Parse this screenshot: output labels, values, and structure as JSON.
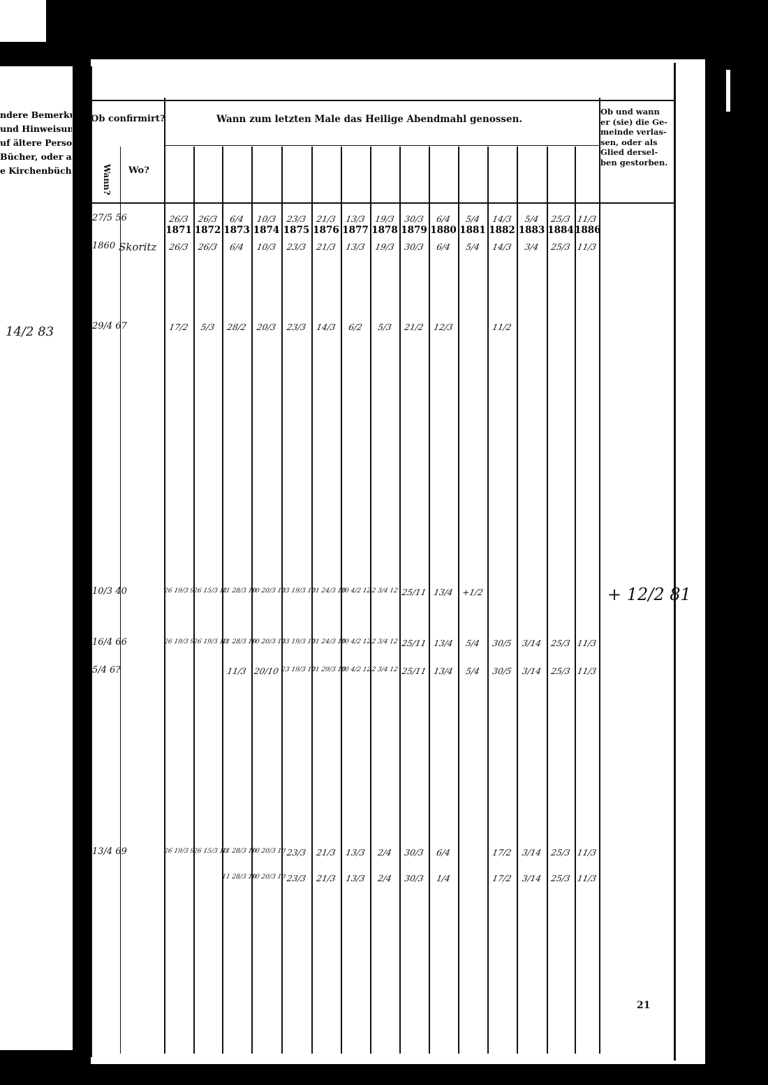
{
  "left_page": {
    "lines": [
      "ndere Bemerkun-",
      "und Hinweisun-",
      "uf ältere Perso-",
      "Bücher, oder auf",
      "e Kirchenbücher."
    ],
    "note": "14/2 83"
  },
  "header": {
    "confirmed": "Ob confirmirt?",
    "when": "Wann?",
    "where": "Wo?",
    "communion": "Wann zum letzten Male das Heilige Abendmahl genossen.",
    "left_lines": [
      "Ob und wann",
      "er (sie) die Ge-",
      "meinde verlas-",
      "sen, oder als",
      "Glied dersel-",
      "ben gestorben."
    ],
    "years": [
      "1871",
      "1872",
      "1873",
      "1874",
      "1875",
      "1876",
      "1877",
      "1878",
      "1879",
      "1880",
      "1881",
      "1882",
      "1883",
      "1884",
      "1886"
    ]
  },
  "rows": [
    {
      "when": "27/5 56",
      "where": "",
      "left": "",
      "entries": [
        "26/3",
        "26/3",
        "6/4",
        "10/3",
        "23/3",
        "21/3",
        "13/3",
        "19/3",
        "30/3",
        "6/4",
        "5/4",
        "14/3",
        "5/4",
        "25/3",
        "11/3"
      ]
    },
    {
      "when": "1860",
      "where": "Skoritz",
      "left": "",
      "entries": [
        "26/3",
        "26/3",
        "6/4",
        "10/3",
        "23/3",
        "21/3",
        "13/3",
        "19/3",
        "30/3",
        "6/4",
        "5/4",
        "14/3",
        "3/4",
        "25/3",
        "11/3"
      ]
    },
    {
      "when": "29/4 67",
      "where": "",
      "left": "",
      "entries": [
        "17/2",
        "5/3",
        "28/2",
        "20/3",
        "23/3",
        "14/3",
        "6/2",
        "5/3",
        "21/2",
        "12/3",
        "",
        "11/2",
        "",
        "",
        ""
      ]
    },
    {
      "when": "10/3 40",
      "where": "",
      "left": "+ 12/2 81",
      "entries": [
        "26 19/3 9",
        "26 15/3 11",
        "11 28/3 10",
        "10 20/3 10",
        "23 19/3 10",
        "21 24/3 10",
        "20 4/2 12",
        "2 3/4 12",
        "25/11",
        "13/4",
        "+1/2",
        "",
        "",
        "",
        ""
      ]
    },
    {
      "when": "16/4 66",
      "where": "",
      "left": "",
      "entries": [
        "26 19/3 9",
        "26 19/3 10",
        "11 28/3 10",
        "10 20/3 10",
        "23 19/3 10",
        "21 24/3 10",
        "20 4/2 12",
        "2 3/4 12",
        "25/11",
        "13/4",
        "5/4",
        "30/5",
        "3/14",
        "25/3",
        "11/3"
      ]
    },
    {
      "when": "5/4 6?",
      "where": "",
      "left": "",
      "entries": [
        "",
        "",
        "11/3",
        "20/10",
        "23 19/3 10",
        "21 29/3 10",
        "20 4/2 12",
        "2 3/4 12",
        "25/11",
        "13/4",
        "5/4",
        "30/5",
        "3/14",
        "25/3",
        "11/3"
      ]
    },
    {
      "when": "13/4 69",
      "where": "",
      "left": "",
      "entries": [
        "26 19/3 9",
        "26 15/3 10",
        "11 28/3 10",
        "10 20/3 10",
        "23/3",
        "21/3",
        "13/3",
        "2/4",
        "30/3",
        "6/4",
        "",
        "17/2",
        "3/14",
        "25/3",
        "11/3"
      ]
    },
    {
      "when": "",
      "where": "",
      "left": "",
      "entries": [
        "",
        "",
        "11 28/3 10",
        "10 20/3 10",
        "23/3",
        "21/3",
        "13/3",
        "2/4",
        "30/3",
        "1/4",
        "",
        "17/2",
        "3/14",
        "25/3",
        "11/3"
      ]
    }
  ],
  "page_number": "21"
}
